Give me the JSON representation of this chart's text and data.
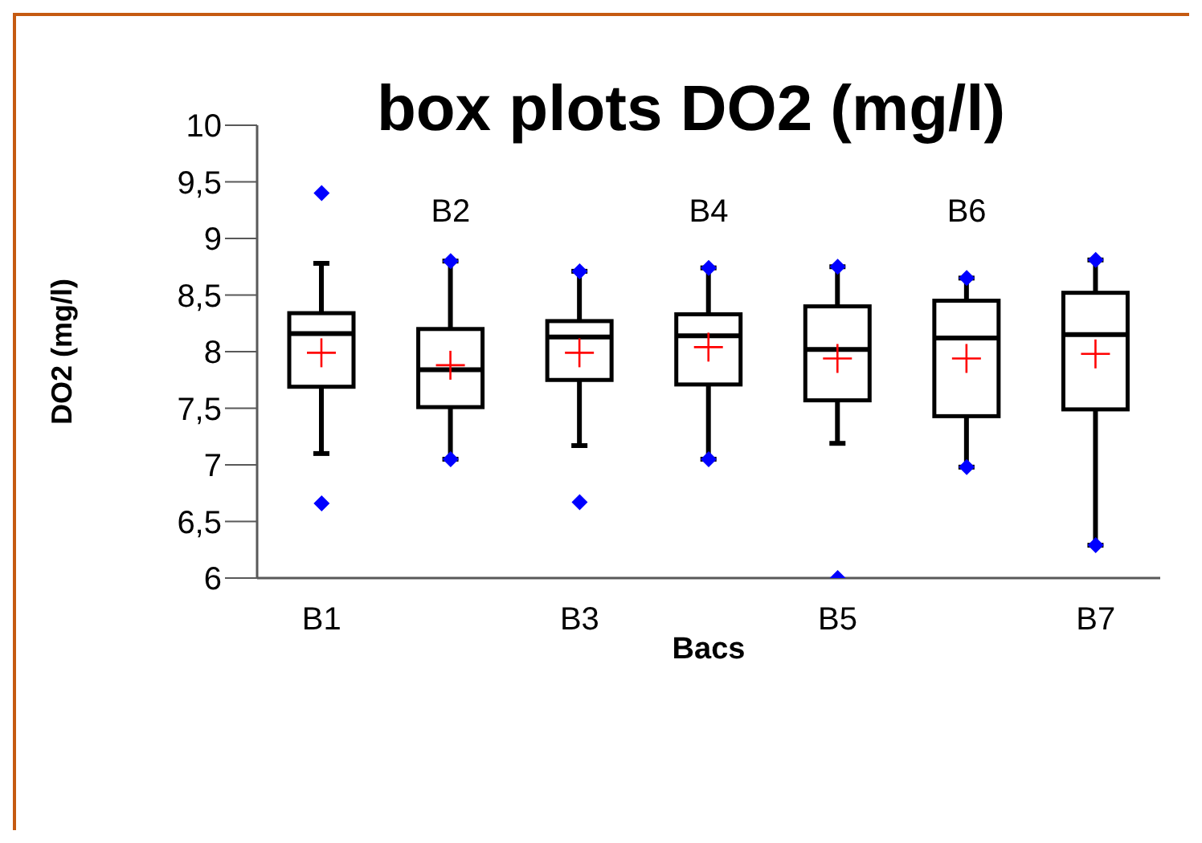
{
  "chart_data": {
    "type": "box",
    "title": "box plots DO2 (mg/l)",
    "xlabel": "Bacs",
    "ylabel": "DO2 (mg/l)",
    "categories": [
      "B1",
      "B2",
      "B3",
      "B4",
      "B5",
      "B6",
      "B7"
    ],
    "boxes": [
      {
        "low": 7.1,
        "q1": 7.69,
        "median": 8.16,
        "q3": 8.34,
        "high": 8.78,
        "mean": 7.99,
        "outliers": [
          9.4,
          6.66
        ]
      },
      {
        "low": 7.05,
        "q1": 7.51,
        "median": 7.84,
        "q3": 8.2,
        "high": 8.8,
        "mean": 7.88,
        "outliers": [
          8.8,
          7.05
        ]
      },
      {
        "low": 7.17,
        "q1": 7.75,
        "median": 8.13,
        "q3": 8.27,
        "high": 8.71,
        "mean": 7.99,
        "outliers": [
          8.71,
          6.67
        ]
      },
      {
        "low": 7.05,
        "q1": 7.71,
        "median": 8.14,
        "q3": 8.33,
        "high": 8.74,
        "mean": 8.04,
        "outliers": [
          8.74,
          7.05
        ]
      },
      {
        "low": 7.19,
        "q1": 7.57,
        "median": 8.02,
        "q3": 8.4,
        "high": 8.75,
        "mean": 7.94,
        "outliers": [
          8.75,
          6.0
        ]
      },
      {
        "low": 6.98,
        "q1": 7.43,
        "median": 8.12,
        "q3": 8.45,
        "high": 8.65,
        "mean": 7.94,
        "outliers": [
          8.65,
          6.98
        ]
      },
      {
        "low": 6.29,
        "q1": 7.49,
        "median": 8.15,
        "q3": 8.52,
        "high": 8.81,
        "mean": 7.98,
        "outliers": [
          8.81,
          6.29
        ]
      }
    ],
    "ylim": [
      6,
      10
    ],
    "yticks": [
      6,
      {
        "value": 6.5,
        "label": "6,5"
      },
      7,
      {
        "value": 7.5,
        "label": "7,5"
      },
      8,
      {
        "value": 8.5,
        "label": "8,5"
      },
      9,
      {
        "value": 9.5,
        "label": "9,5"
      },
      10
    ],
    "marker": "diamond"
  }
}
